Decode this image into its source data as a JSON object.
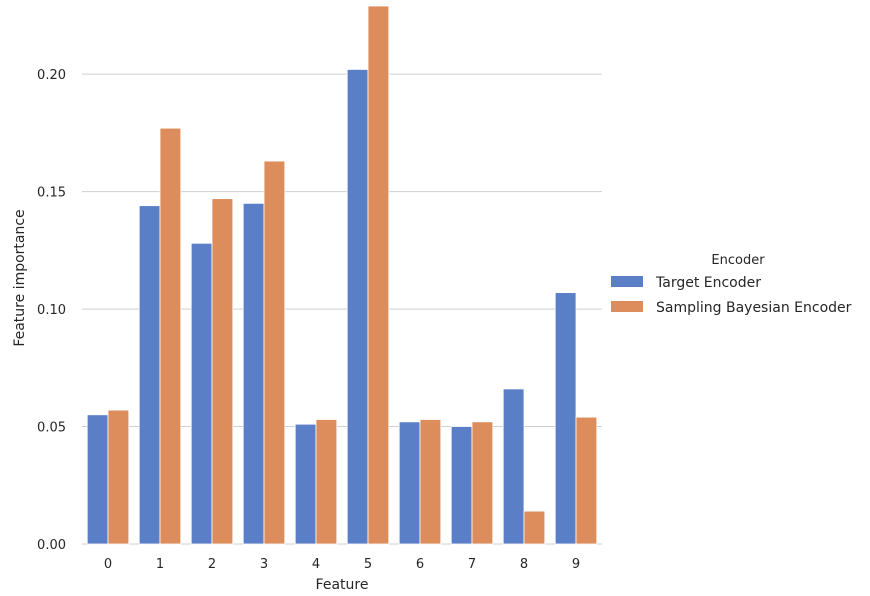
{
  "chart_data": {
    "type": "bar",
    "categories": [
      "0",
      "1",
      "2",
      "3",
      "4",
      "5",
      "6",
      "7",
      "8",
      "9"
    ],
    "series": [
      {
        "name": "Target Encoder",
        "color": "#5a7fc6",
        "values": [
          0.055,
          0.144,
          0.128,
          0.145,
          0.051,
          0.202,
          0.052,
          0.05,
          0.066,
          0.107
        ]
      },
      {
        "name": "Sampling Bayesian Encoder",
        "color": "#dd8c5c",
        "values": [
          0.057,
          0.177,
          0.147,
          0.163,
          0.053,
          0.229,
          0.053,
          0.052,
          0.014,
          0.054
        ]
      }
    ],
    "xlabel": "Feature",
    "ylabel": "Feature importance",
    "yticks": [
      "0.00",
      "0.05",
      "0.10",
      "0.15",
      "0.20"
    ],
    "ylim": [
      0,
      0.229
    ],
    "grid": "horizontal",
    "legend": {
      "title": "Encoder",
      "placement": "right"
    }
  }
}
